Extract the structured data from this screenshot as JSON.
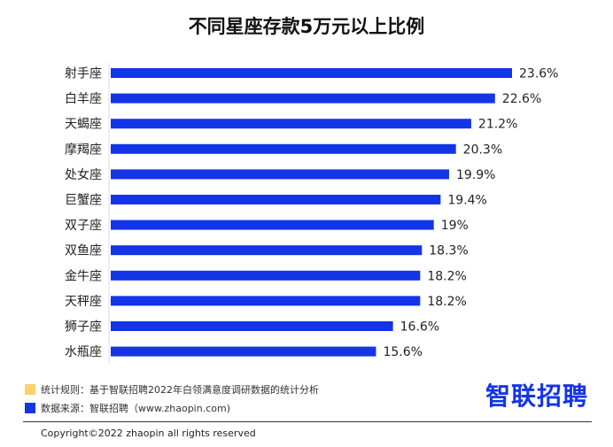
{
  "title": "不同星座存款5万元以上比例",
  "notes": [
    {
      "text": "统计规则：基于智联招聘2022年白领满意度调研数据的统计分析",
      "color": "#F7D36B"
    },
    {
      "text": "数据来源：智联招聘（www.zhaopin.com)",
      "color": "#1434E8"
    }
  ],
  "logo": "智联招聘",
  "logo_color": "#1434E8",
  "copyright": "Copyright©2022 zhaopin all rights reserved",
  "chart_data": {
    "type": "bar",
    "orientation": "horizontal",
    "title": "不同星座存款5万元以上比例",
    "categories": [
      "射手座",
      "白羊座",
      "天蝎座",
      "摩羯座",
      "处女座",
      "巨蟹座",
      "双子座",
      "双鱼座",
      "金牛座",
      "天秤座",
      "狮子座",
      "水瓶座"
    ],
    "values": [
      23.6,
      22.6,
      21.2,
      20.3,
      19.9,
      19.4,
      19,
      18.3,
      18.2,
      18.2,
      16.6,
      15.6
    ],
    "value_labels": [
      "23.6%",
      "22.6%",
      "21.2%",
      "20.3%",
      "19.9%",
      "19.4%",
      "19%",
      "18.3%",
      "18.2%",
      "18.2%",
      "16.6%",
      "15.6%"
    ],
    "unit": "%",
    "bar_color": "#1434E8",
    "grid": false,
    "legend": false
  }
}
